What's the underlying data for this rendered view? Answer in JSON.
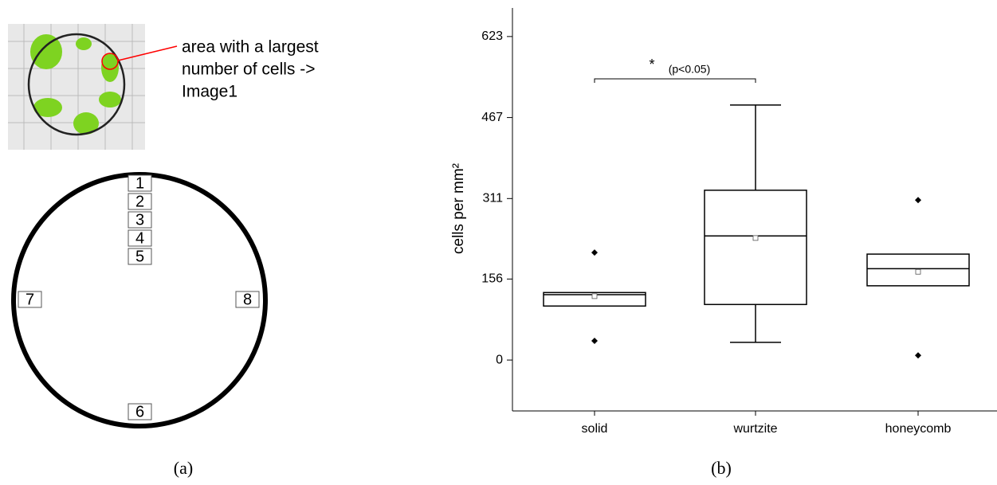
{
  "panel_a": {
    "annotation_lines": [
      "area with a largest",
      "number of cells ->",
      "Image1"
    ],
    "positions": [
      "1",
      "2",
      "3",
      "4",
      "5",
      "7",
      "8",
      "6"
    ],
    "caption": "(a)"
  },
  "chart_data": {
    "type": "box",
    "caption": "(b)",
    "y_label": "cells per mm²",
    "categories": [
      "solid",
      "wurtzite",
      "honeycomb"
    ],
    "boxes": [
      {
        "q1": 104,
        "median": 126,
        "q3": 130,
        "mean": 123,
        "min": 37,
        "max": 207,
        "whiskers": false
      },
      {
        "q1": 107,
        "median": 239,
        "q3": 327,
        "mean": 235,
        "min": 34,
        "max": 491,
        "whiskers": true
      },
      {
        "q1": 143,
        "median": 176,
        "q3": 204,
        "mean": 170,
        "min": 9,
        "max": 308,
        "whiskers": false
      }
    ],
    "ylim": [
      -98,
      678
    ],
    "yticks": [
      0,
      156,
      311,
      467,
      623
    ],
    "significance": {
      "star": "*",
      "text": "(p<0.05)",
      "from": 0,
      "to": 1
    }
  }
}
